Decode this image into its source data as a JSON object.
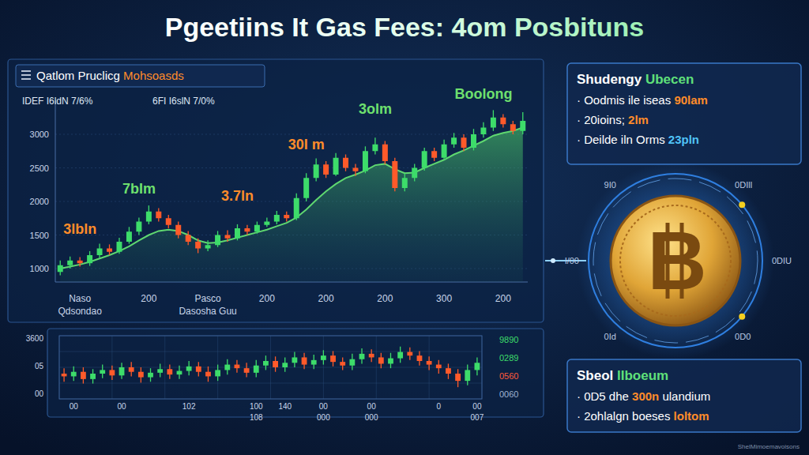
{
  "header": {
    "title": "Pgeetiins It Gas Fees: 4om Posbituns"
  },
  "chart_data": [
    {
      "type": "candlestick",
      "title": "Qatlom Pruclicg Mohsoasds",
      "stats": [
        "IDEF I6ldN 7/6%",
        "6FI I6slN 7/0%"
      ],
      "categories": [
        null,
        null,
        "Naso\nQdsondao",
        null,
        null,
        null,
        null,
        null,
        null,
        "200",
        null,
        null,
        null,
        null,
        null,
        "Pasco\nDasosha Guu",
        null,
        null,
        null,
        null,
        null,
        "200",
        null,
        null,
        null,
        null,
        null,
        "200",
        null,
        null,
        null,
        null,
        null,
        "200",
        null,
        null,
        null,
        null,
        null,
        "300",
        null,
        null,
        null,
        null,
        null,
        "200",
        null,
        null
      ],
      "open": [
        950,
        1050,
        1120,
        1080,
        1200,
        1300,
        1250,
        1400,
        1550,
        1700,
        1850,
        1750,
        1650,
        1500,
        1400,
        1300,
        1350,
        1500,
        1450,
        1600,
        1550,
        1650,
        1700,
        1800,
        1750,
        2050,
        2350,
        2550,
        2400,
        2650,
        2500,
        2450,
        2750,
        2850,
        2600,
        2200,
        2350,
        2500,
        2750,
        2650,
        2850,
        2950,
        2800,
        3000,
        3100,
        3250,
        3150,
        3050
      ],
      "high": [
        1120,
        1180,
        1170,
        1260,
        1370,
        1360,
        1460,
        1620,
        1760,
        1940,
        1900,
        1800,
        1700,
        1560,
        1450,
        1420,
        1560,
        1570,
        1660,
        1650,
        1700,
        1760,
        1860,
        1850,
        2120,
        2420,
        2640,
        2600,
        2720,
        2700,
        2560,
        2820,
        2950,
        2900,
        2650,
        2420,
        2560,
        2800,
        2800,
        2920,
        3020,
        3000,
        3080,
        3180,
        3360,
        3300,
        3200,
        3330
      ],
      "low": [
        900,
        1000,
        1030,
        1040,
        1160,
        1200,
        1220,
        1370,
        1500,
        1660,
        1700,
        1600,
        1450,
        1350,
        1230,
        1260,
        1320,
        1400,
        1420,
        1500,
        1520,
        1620,
        1660,
        1700,
        1720,
        2000,
        2300,
        2350,
        2380,
        2450,
        2380,
        2420,
        2700,
        2550,
        2150,
        2150,
        2300,
        2460,
        2600,
        2620,
        2800,
        2750,
        2760,
        2950,
        3050,
        3100,
        3000,
        3000
      ],
      "close": [
        1050,
        1120,
        1080,
        1200,
        1300,
        1250,
        1400,
        1550,
        1700,
        1850,
        1750,
        1650,
        1500,
        1400,
        1300,
        1350,
        1500,
        1450,
        1600,
        1550,
        1650,
        1700,
        1800,
        1750,
        2050,
        2350,
        2550,
        2400,
        2650,
        2500,
        2450,
        2750,
        2850,
        2600,
        2200,
        2350,
        2500,
        2750,
        2650,
        2850,
        2950,
        2800,
        3000,
        3100,
        3250,
        3150,
        3050,
        3200
      ],
      "series": [
        {
          "type": "area",
          "color": "#5fd870",
          "values": [
            1000,
            1030,
            1060,
            1100,
            1150,
            1200,
            1260,
            1330,
            1420,
            1500,
            1560,
            1580,
            1560,
            1500,
            1420,
            1380,
            1390,
            1420,
            1460,
            1500,
            1540,
            1580,
            1630,
            1680,
            1760,
            1880,
            2020,
            2150,
            2260,
            2350,
            2400,
            2460,
            2540,
            2560,
            2480,
            2420,
            2430,
            2500,
            2560,
            2620,
            2700,
            2760,
            2830,
            2900,
            2980,
            3020,
            3050,
            3100
          ]
        }
      ],
      "annotations": [
        {
          "text": "3lbln",
          "index": 2,
          "color": "#ff8c2a"
        },
        {
          "text": "7bIm",
          "index": 8,
          "color": "#6ee06e"
        },
        {
          "text": "3.7ln",
          "index": 18,
          "color": "#ff8c2a"
        },
        {
          "text": "30I m",
          "index": 25,
          "color": "#ff8c2a"
        },
        {
          "text": "3olm",
          "index": 32,
          "color": "#6ee06e"
        },
        {
          "text": "Boolong",
          "index": 43,
          "color": "#6ee06e"
        }
      ],
      "ylim": [
        800,
        3500
      ],
      "yticks": [
        1000,
        1500,
        2000,
        2500,
        3000
      ],
      "grid": true
    },
    {
      "type": "candlestick",
      "categories": [
        null,
        "00",
        null,
        null,
        null,
        null,
        "00",
        null,
        null,
        null,
        null,
        null,
        null,
        "102",
        null,
        null,
        null,
        null,
        null,
        null,
        "100\n108",
        null,
        null,
        "140",
        null,
        null,
        null,
        "00\n000",
        null,
        null,
        null,
        null,
        "00\n000",
        null,
        null,
        null,
        null,
        null,
        null,
        "0",
        null,
        null,
        null,
        "00\n007"
      ],
      "open": [
        48,
        45,
        50,
        42,
        48,
        52,
        46,
        55,
        50,
        44,
        49,
        53,
        47,
        51,
        56,
        50,
        45,
        52,
        58,
        54,
        49,
        57,
        62,
        55,
        60,
        66,
        58,
        63,
        68,
        61,
        57,
        64,
        70,
        66,
        59,
        65,
        72,
        68,
        62,
        58,
        54,
        48,
        40,
        52
      ],
      "high": [
        54,
        56,
        55,
        53,
        58,
        57,
        60,
        61,
        55,
        54,
        59,
        58,
        57,
        62,
        61,
        56,
        58,
        64,
        63,
        60,
        63,
        68,
        67,
        66,
        72,
        71,
        69,
        74,
        73,
        66,
        70,
        76,
        75,
        71,
        71,
        78,
        77,
        73,
        67,
        63,
        59,
        53,
        58,
        66
      ],
      "low": [
        39,
        40,
        37,
        37,
        43,
        41,
        42,
        45,
        38,
        39,
        44,
        42,
        42,
        46,
        45,
        39,
        40,
        47,
        49,
        44,
        44,
        52,
        50,
        50,
        55,
        53,
        53,
        58,
        56,
        52,
        52,
        59,
        61,
        54,
        54,
        60,
        63,
        57,
        52,
        48,
        42,
        33,
        35,
        46
      ],
      "close": [
        45,
        50,
        42,
        48,
        52,
        46,
        55,
        50,
        44,
        49,
        53,
        47,
        51,
        56,
        50,
        45,
        52,
        58,
        54,
        49,
        57,
        62,
        55,
        60,
        66,
        58,
        63,
        68,
        61,
        57,
        64,
        70,
        66,
        59,
        65,
        72,
        68,
        62,
        58,
        54,
        48,
        40,
        52,
        60
      ],
      "side_labels": {
        "left": [
          "3600",
          "05",
          "00"
        ],
        "right": [
          {
            "text": "9890",
            "color": "#3ddc6a"
          },
          {
            "text": "0289",
            "color": "#3ddc6a"
          },
          {
            "text": "0560",
            "color": "#ff5a3a"
          },
          {
            "text": "0060",
            "color": "#9fb3d1"
          }
        ]
      },
      "ylim": [
        20,
        90
      ],
      "grid": true,
      "tick_labels": "x"
    }
  ],
  "panels": [
    {
      "title": "Shudengy",
      "title_highlight": "Ubecen",
      "items": [
        {
          "text": "· Oodmis ile iseas",
          "value": "90lam",
          "color": "#ff8c2a"
        },
        {
          "text": "· 20ioins;",
          "value": "2lm",
          "color": "#ff8c2a"
        },
        {
          "text": "· Deilde iln Orms",
          "value": "23pln",
          "color": "#4fc3f7"
        }
      ]
    },
    {
      "title": "Sbeol",
      "title_highlight": "lIboeum",
      "items": [
        {
          "text": "· 0D5 dhe",
          "value": "300n",
          "suffix": "ulandium",
          "color": "#ff8c2a"
        },
        {
          "text": "· 2ohlalgn boeses",
          "value": "loltom",
          "color": "#ff8c2a"
        }
      ]
    }
  ],
  "coin": {
    "symbol": "B",
    "ring_labels": [
      "9I0",
      "0DIll",
      "I/00",
      "0DIU",
      "0Id",
      "0D0"
    ]
  },
  "footer": "ShelMimoemavoisons"
}
